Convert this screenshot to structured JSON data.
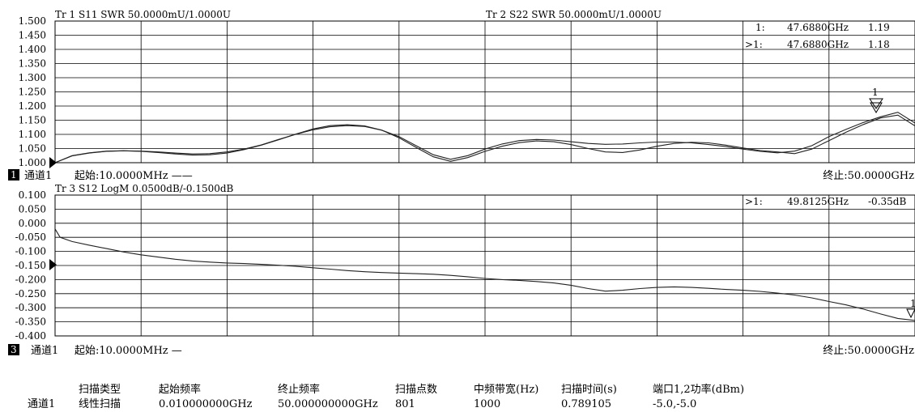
{
  "chart_data": [
    {
      "type": "line",
      "channel_label": "通道1",
      "channel_badge": "1",
      "start_label": "起始:10.0000MHz ——",
      "stop_label": "终止:50.0000GHz",
      "ylim": [
        1.0,
        1.5
      ],
      "yticks": [
        "1.500",
        "1.450",
        "1.400",
        "1.350",
        "1.300",
        "1.250",
        "1.200",
        "1.150",
        "1.100",
        "1.050",
        "1.000"
      ],
      "x_range_ghz": [
        0.01,
        50.0
      ],
      "reference_value": 1.0,
      "series": [
        {
          "name": "Tr 1  S11 SWR 50.0000mU/1.0000U",
          "x": [
            0.01,
            1,
            2,
            3,
            4,
            5,
            6,
            7,
            8,
            9,
            10,
            11,
            12,
            13,
            14,
            15,
            16,
            17,
            18,
            19,
            20,
            21,
            22,
            23,
            24,
            25,
            26,
            27,
            28,
            29,
            30,
            31,
            32,
            33,
            34,
            35,
            36,
            37,
            38,
            39,
            40,
            41,
            42,
            43,
            44,
            45,
            46,
            47,
            48,
            49,
            50
          ],
          "y": [
            1.0,
            1.024,
            1.034,
            1.04,
            1.042,
            1.041,
            1.038,
            1.034,
            1.031,
            1.032,
            1.038,
            1.048,
            1.063,
            1.082,
            1.1,
            1.116,
            1.127,
            1.131,
            1.128,
            1.115,
            1.092,
            1.06,
            1.028,
            1.012,
            1.025,
            1.048,
            1.066,
            1.078,
            1.082,
            1.08,
            1.074,
            1.068,
            1.065,
            1.066,
            1.07,
            1.073,
            1.073,
            1.07,
            1.064,
            1.057,
            1.048,
            1.04,
            1.035,
            1.041,
            1.06,
            1.092,
            1.118,
            1.142,
            1.162,
            1.178,
            1.14
          ]
        },
        {
          "name": "Tr 2  S22 SWR 50.0000mU/1.0000U",
          "x": [
            0.01,
            1,
            2,
            3,
            4,
            5,
            6,
            7,
            8,
            9,
            10,
            11,
            12,
            13,
            14,
            15,
            16,
            17,
            18,
            19,
            20,
            21,
            22,
            23,
            24,
            25,
            26,
            27,
            28,
            29,
            30,
            31,
            32,
            33,
            34,
            35,
            36,
            37,
            38,
            39,
            40,
            41,
            42,
            43,
            44,
            45,
            46,
            47,
            48,
            49,
            50
          ],
          "y": [
            1.0,
            1.025,
            1.035,
            1.041,
            1.042,
            1.04,
            1.036,
            1.031,
            1.027,
            1.028,
            1.034,
            1.046,
            1.062,
            1.081,
            1.101,
            1.119,
            1.131,
            1.134,
            1.13,
            1.115,
            1.088,
            1.054,
            1.021,
            1.005,
            1.018,
            1.04,
            1.058,
            1.071,
            1.077,
            1.074,
            1.064,
            1.05,
            1.038,
            1.036,
            1.045,
            1.058,
            1.068,
            1.072,
            1.07,
            1.062,
            1.052,
            1.043,
            1.038,
            1.032,
            1.048,
            1.078,
            1.108,
            1.135,
            1.158,
            1.168,
            1.13
          ]
        }
      ],
      "markers": [
        {
          "label": "1:",
          "freq": "47.6880GHz",
          "value": "1.19"
        },
        {
          "label": ">1:",
          "freq": "47.6880GHz",
          "value": "1.18"
        }
      ],
      "marker_flag": "1"
    },
    {
      "type": "line",
      "channel_label": "通道1",
      "channel_badge": "3",
      "start_label": "起始:10.0000MHz —",
      "stop_label": "终止:50.0000GHz",
      "ylim": [
        -0.4,
        0.1
      ],
      "yticks": [
        "0.100",
        "0.050",
        "0.000",
        "-0.050",
        "-0.100",
        "-0.150",
        "-0.200",
        "-0.250",
        "-0.300",
        "-0.350",
        "-0.400"
      ],
      "x_range_ghz": [
        0.01,
        50.0
      ],
      "reference_value": -0.15,
      "series": [
        {
          "name": "Tr 3  S12 LogM 0.0500dB/-0.1500dB",
          "x": [
            0.01,
            0.3,
            1,
            2,
            3,
            4,
            5,
            6,
            7,
            8,
            9,
            10,
            11,
            12,
            13,
            14,
            15,
            16,
            17,
            18,
            19,
            20,
            21,
            22,
            23,
            24,
            25,
            26,
            27,
            28,
            29,
            30,
            31,
            32,
            33,
            34,
            35,
            36,
            37,
            38,
            39,
            40,
            41,
            42,
            43,
            44,
            45,
            46,
            47,
            48,
            49,
            50
          ],
          "y": [
            -0.02,
            -0.05,
            -0.065,
            -0.078,
            -0.09,
            -0.102,
            -0.112,
            -0.12,
            -0.128,
            -0.134,
            -0.138,
            -0.141,
            -0.143,
            -0.146,
            -0.149,
            -0.153,
            -0.158,
            -0.163,
            -0.168,
            -0.172,
            -0.175,
            -0.177,
            -0.179,
            -0.181,
            -0.185,
            -0.19,
            -0.196,
            -0.2,
            -0.203,
            -0.207,
            -0.212,
            -0.22,
            -0.232,
            -0.241,
            -0.238,
            -0.232,
            -0.228,
            -0.226,
            -0.228,
            -0.231,
            -0.235,
            -0.238,
            -0.242,
            -0.248,
            -0.255,
            -0.265,
            -0.278,
            -0.29,
            -0.305,
            -0.322,
            -0.338,
            -0.345
          ]
        }
      ],
      "markers": [
        {
          "label": ">1:",
          "freq": "49.8125GHz",
          "value": "-0.35dB"
        }
      ],
      "marker_flag": "1"
    }
  ],
  "settings_table": {
    "headers": [
      "扫描类型",
      "起始频率",
      "终止频率",
      "扫描点数",
      "中频带宽(Hz)",
      "扫描时间(s)",
      "端口1,2功率(dBm)"
    ],
    "row_label": "通道1",
    "row": [
      "线性扫描",
      "0.010000000GHz",
      "50.000000000GHz",
      "801",
      "1000",
      "0.789105",
      "-5.0,-5.0"
    ]
  }
}
